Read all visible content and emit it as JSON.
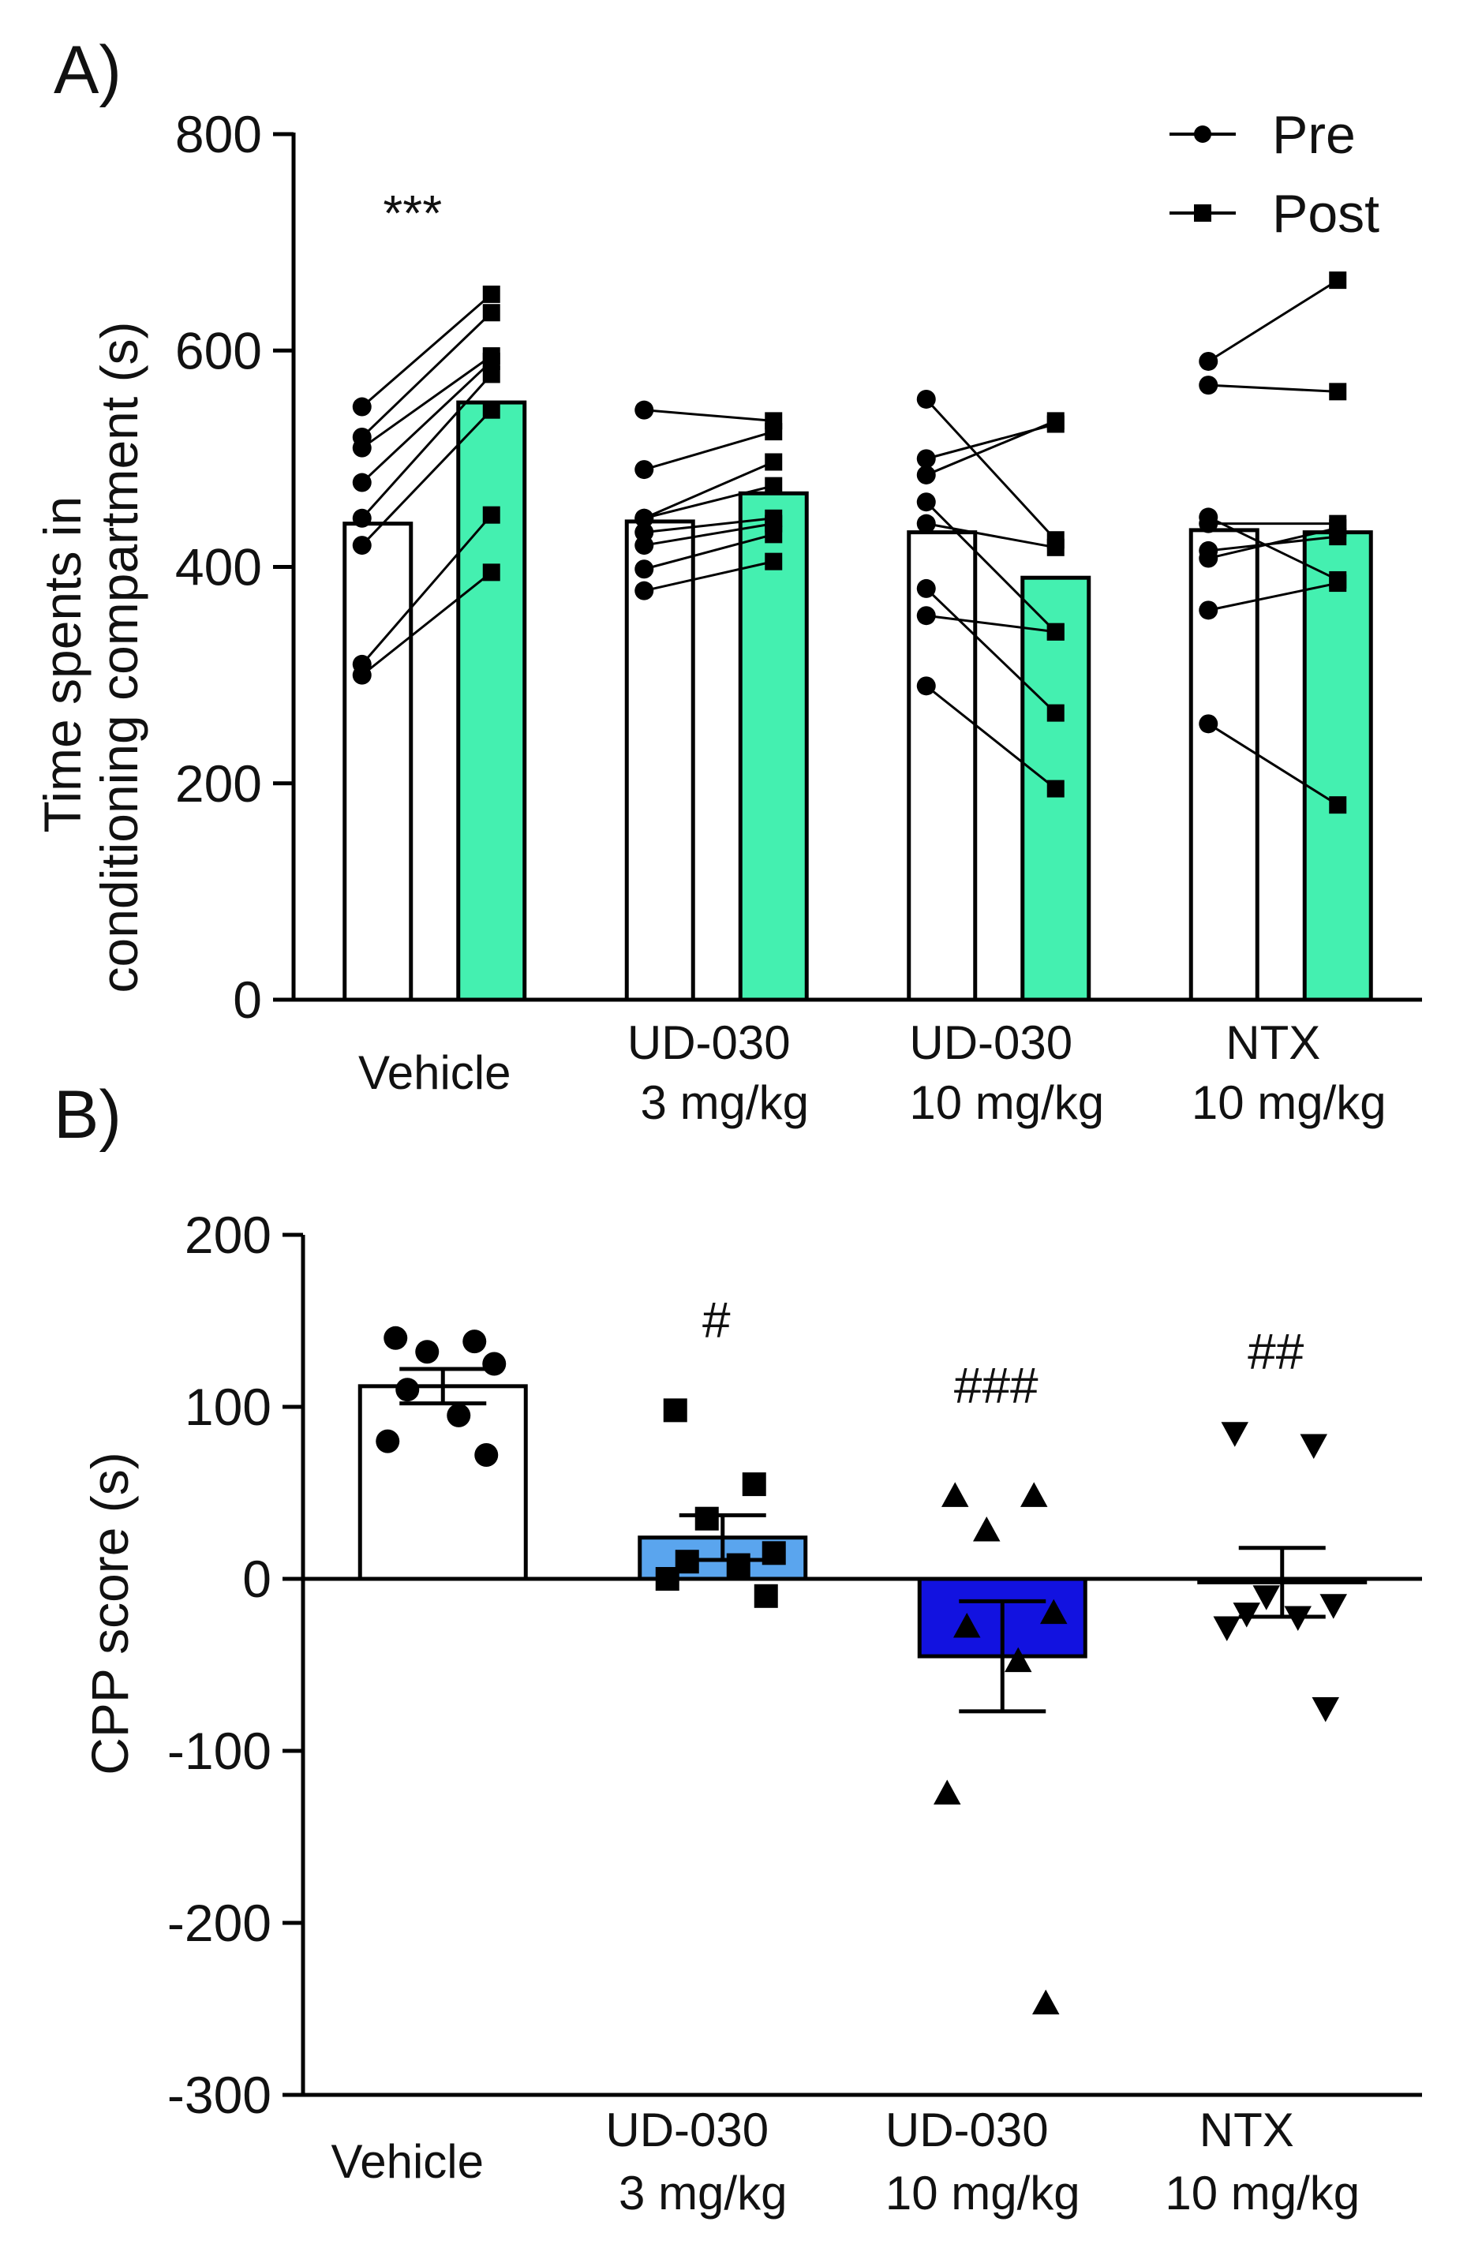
{
  "chart_data": [
    {
      "panel_label": "A)",
      "type": "bar",
      "ylabel_lines": [
        "Time spents in",
        "conditioning compartment (s)"
      ],
      "ylim": [
        0,
        800
      ],
      "yticks": [
        0,
        200,
        400,
        600,
        800
      ],
      "categories": [
        {
          "line1": "Vehicle",
          "line2": ""
        },
        {
          "line1": "UD-030",
          "line2": "3 mg/kg"
        },
        {
          "line1": "UD-030",
          "line2": "10 mg/kg"
        },
        {
          "line1": "NTX",
          "line2": "10 mg/kg"
        }
      ],
      "legend": [
        {
          "label": "Pre",
          "marker": "circle"
        },
        {
          "label": "Post",
          "marker": "square"
        }
      ],
      "series": [
        {
          "name": "Pre",
          "fill": "#ffffff",
          "values": [
            440,
            442,
            432,
            434
          ]
        },
        {
          "name": "Post",
          "fill": "#44f0b0",
          "values": [
            552,
            468,
            390,
            432
          ]
        }
      ],
      "pairs": [
        [
          [
            548,
            652
          ],
          [
            520,
            635
          ],
          [
            510,
            595
          ],
          [
            478,
            590
          ],
          [
            445,
            578
          ],
          [
            420,
            545
          ],
          [
            310,
            448
          ],
          [
            300,
            395
          ]
        ],
        [
          [
            545,
            535
          ],
          [
            490,
            525
          ],
          [
            445,
            497
          ],
          [
            445,
            475
          ],
          [
            432,
            445
          ],
          [
            420,
            440
          ],
          [
            398,
            430
          ],
          [
            378,
            405
          ]
        ],
        [
          [
            555,
            425
          ],
          [
            500,
            532
          ],
          [
            485,
            535
          ],
          [
            460,
            340
          ],
          [
            440,
            418
          ],
          [
            380,
            265
          ],
          [
            355,
            340
          ],
          [
            290,
            195
          ]
        ],
        [
          [
            590,
            665
          ],
          [
            568,
            562
          ],
          [
            446,
            388
          ],
          [
            440,
            440
          ],
          [
            415,
            428
          ],
          [
            408,
            436
          ],
          [
            360,
            385
          ],
          [
            255,
            180
          ]
        ]
      ],
      "annotations": [
        {
          "category_index": 0,
          "text": "***"
        }
      ]
    },
    {
      "panel_label": "B)",
      "type": "bar",
      "ylabel": "CPP score (s)",
      "ylim": [
        -300,
        200
      ],
      "yticks": [
        -300,
        -200,
        -100,
        0,
        100,
        200
      ],
      "categories": [
        {
          "line1": "Vehicle",
          "line2": ""
        },
        {
          "line1": "UD-030",
          "line2": "3 mg/kg"
        },
        {
          "line1": "UD-030",
          "line2": "10 mg/kg"
        },
        {
          "line1": "NTX",
          "line2": "10 mg/kg"
        }
      ],
      "bars": [
        {
          "mean": 112,
          "sem": 10,
          "fill": "#ffffff",
          "marker": "circle",
          "points": [
            140,
            138,
            132,
            125,
            110,
            95,
            80,
            72
          ]
        },
        {
          "mean": 24,
          "sem": 13,
          "fill": "#5aa5ee",
          "marker": "square",
          "points": [
            98,
            55,
            35,
            15,
            10,
            8,
            0,
            -10
          ]
        },
        {
          "mean": -45,
          "sem": 32,
          "fill": "#1212e0",
          "marker": "triangle-up",
          "points": [
            48,
            48,
            28,
            -20,
            -28,
            -48,
            -125,
            -247
          ]
        },
        {
          "mean": -2,
          "sem": 20,
          "fill": "#ffffff",
          "marker": "triangle-down",
          "points": [
            85,
            78,
            -10,
            -15,
            -20,
            -22,
            -28,
            -75
          ]
        }
      ],
      "annotations": [
        {
          "category_index": 1,
          "text": "#"
        },
        {
          "category_index": 2,
          "text": "###"
        },
        {
          "category_index": 3,
          "text": "##"
        }
      ]
    }
  ]
}
